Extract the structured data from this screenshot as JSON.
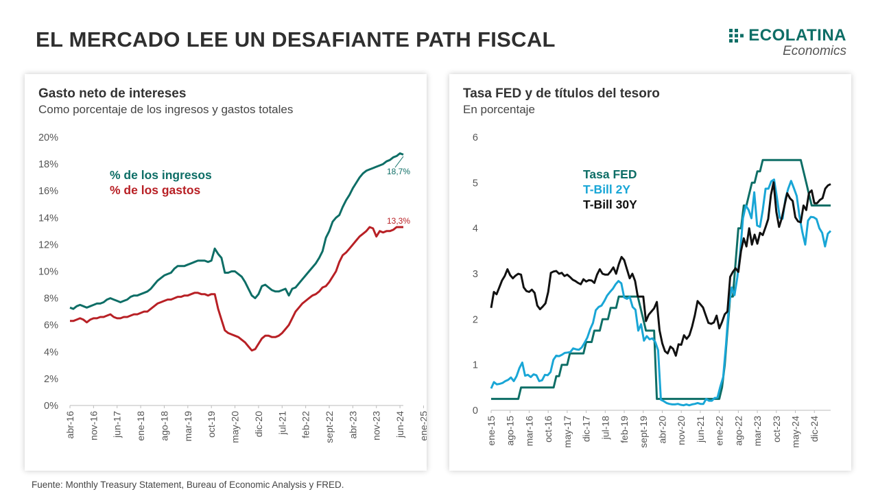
{
  "page": {
    "title": "EL MERCADO LEE UN DESAFIANTE PATH FISCAL",
    "footer": "Fuente: Monthly Treasury Statement, Bureau of Economic Analysis y FRED."
  },
  "logo": {
    "name": "ECOLATINA",
    "sub": "Economics",
    "color": "#0e6e66"
  },
  "chart_data": [
    {
      "type": "line",
      "title": "Gasto neto de intereses",
      "subtitle": "Como porcentaje de los ingresos y gastos totales",
      "y_ticks": [
        "0%",
        "2%",
        "4%",
        "6%",
        "8%",
        "10%",
        "12%",
        "14%",
        "16%",
        "18%",
        "20%"
      ],
      "ylim": [
        0,
        20
      ],
      "x_ticks": [
        "abr-16",
        "nov-16",
        "jun-17",
        "ene-18",
        "ago-18",
        "mar-19",
        "oct-19",
        "may-20",
        "dic-20",
        "jul-21",
        "feb-22",
        "sept-22",
        "abr-23",
        "nov-23",
        "jun-24",
        "ene-25"
      ],
      "series": [
        {
          "name": "% de los ingresos",
          "color": "#0e6e66",
          "end_label": "18,7%",
          "values": [
            7.3,
            7.2,
            7.4,
            7.5,
            7.4,
            7.3,
            7.4,
            7.5,
            7.6,
            7.6,
            7.7,
            7.9,
            8.0,
            7.9,
            7.8,
            7.7,
            7.8,
            7.9,
            8.1,
            8.2,
            8.2,
            8.3,
            8.4,
            8.5,
            8.7,
            9.0,
            9.3,
            9.5,
            9.7,
            9.8,
            9.9,
            10.2,
            10.4,
            10.4,
            10.4,
            10.5,
            10.6,
            10.7,
            10.8,
            10.8,
            10.8,
            10.7,
            10.8,
            11.7,
            11.3,
            11.0,
            9.9,
            9.9,
            10.0,
            10.0,
            9.8,
            9.6,
            9.2,
            8.7,
            8.2,
            8.0,
            8.3,
            8.9,
            9.0,
            8.8,
            8.6,
            8.5,
            8.5,
            8.6,
            8.7,
            8.2,
            8.7,
            8.8,
            9.1,
            9.4,
            9.7,
            10.0,
            10.3,
            10.6,
            11.0,
            11.5,
            12.5,
            13.0,
            13.7,
            14.0,
            14.2,
            14.8,
            15.3,
            15.7,
            16.2,
            16.6,
            17.0,
            17.3,
            17.5,
            17.6,
            17.7,
            17.8,
            17.9,
            18.0,
            18.2,
            18.3,
            18.5,
            18.6,
            18.8,
            18.7
          ]
        },
        {
          "name": "% de los gastos",
          "color": "#b82025",
          "end_label": "13,3%",
          "values": [
            6.3,
            6.3,
            6.4,
            6.5,
            6.4,
            6.2,
            6.4,
            6.5,
            6.5,
            6.6,
            6.6,
            6.7,
            6.8,
            6.6,
            6.5,
            6.5,
            6.6,
            6.6,
            6.7,
            6.8,
            6.8,
            6.9,
            7.0,
            7.0,
            7.2,
            7.4,
            7.6,
            7.7,
            7.8,
            7.9,
            7.9,
            8.0,
            8.1,
            8.1,
            8.2,
            8.2,
            8.3,
            8.4,
            8.4,
            8.3,
            8.3,
            8.2,
            8.3,
            8.3,
            7.2,
            6.4,
            5.6,
            5.4,
            5.3,
            5.2,
            5.1,
            4.9,
            4.7,
            4.4,
            4.1,
            4.2,
            4.6,
            5.0,
            5.2,
            5.2,
            5.1,
            5.1,
            5.2,
            5.4,
            5.7,
            6.0,
            6.5,
            7.0,
            7.3,
            7.6,
            7.8,
            8.0,
            8.2,
            8.3,
            8.5,
            8.8,
            8.9,
            9.2,
            9.6,
            10.0,
            10.7,
            11.2,
            11.4,
            11.7,
            12.0,
            12.3,
            12.6,
            12.8,
            13.0,
            13.3,
            13.2,
            12.6,
            13.0,
            12.9,
            13.0,
            13.0,
            13.1,
            13.3,
            13.3,
            13.3
          ]
        }
      ]
    },
    {
      "type": "line",
      "title": "Tasa FED y de títulos del tesoro",
      "subtitle": "En porcentaje",
      "y_ticks": [
        "0",
        "1",
        "2",
        "3",
        "4",
        "5",
        "6"
      ],
      "ylim": [
        0,
        6
      ],
      "x_ticks": [
        "ene-15",
        "ago-15",
        "mar-16",
        "oct-16",
        "may-17",
        "dic-17",
        "jul-18",
        "feb-19",
        "sept-19",
        "abr-20",
        "nov-20",
        "jun-21",
        "ene-22",
        "ago-22",
        "mar-23",
        "oct-23",
        "may-24",
        "dic-24"
      ],
      "series": [
        {
          "name": "Tasa FED",
          "color": "#0e6e66",
          "values": [
            0.25,
            0.25,
            0.25,
            0.25,
            0.25,
            0.25,
            0.25,
            0.25,
            0.25,
            0.25,
            0.25,
            0.5,
            0.5,
            0.5,
            0.5,
            0.5,
            0.5,
            0.5,
            0.5,
            0.5,
            0.5,
            0.5,
            0.5,
            0.5,
            0.75,
            0.75,
            1.0,
            1.0,
            1.0,
            1.25,
            1.25,
            1.25,
            1.25,
            1.25,
            1.25,
            1.5,
            1.5,
            1.5,
            1.75,
            1.75,
            1.75,
            2.0,
            2.0,
            2.0,
            2.25,
            2.25,
            2.25,
            2.5,
            2.5,
            2.5,
            2.5,
            2.5,
            2.5,
            2.5,
            2.5,
            2.25,
            2.0,
            1.75,
            1.75,
            1.75,
            1.75,
            0.25,
            0.25,
            0.25,
            0.25,
            0.25,
            0.25,
            0.25,
            0.25,
            0.25,
            0.25,
            0.25,
            0.25,
            0.25,
            0.25,
            0.25,
            0.25,
            0.25,
            0.25,
            0.25,
            0.25,
            0.25,
            0.25,
            0.25,
            0.25,
            0.5,
            1.0,
            1.75,
            2.5,
            2.5,
            3.25,
            4.0,
            4.0,
            4.5,
            4.5,
            4.75,
            5.0,
            5.0,
            5.25,
            5.25,
            5.5,
            5.5,
            5.5,
            5.5,
            5.5,
            5.5,
            5.5,
            5.5,
            5.5,
            5.5,
            5.5,
            5.5,
            5.5,
            5.5,
            5.5,
            5.25,
            5.0,
            4.75,
            4.5,
            4.5,
            4.5,
            4.5,
            4.5,
            4.5,
            4.5,
            4.5
          ]
        },
        {
          "name": "T-Bill 2Y",
          "color": "#19a6d6",
          "values": [
            0.48,
            0.62,
            0.57,
            0.58,
            0.6,
            0.64,
            0.67,
            0.72,
            0.64,
            0.75,
            0.93,
            1.05,
            0.76,
            0.78,
            0.73,
            0.79,
            0.77,
            0.64,
            0.66,
            0.78,
            0.77,
            0.84,
            1.11,
            1.2,
            1.19,
            1.22,
            1.26,
            1.27,
            1.28,
            1.36,
            1.34,
            1.33,
            1.38,
            1.48,
            1.6,
            1.78,
            1.92,
            2.2,
            2.27,
            2.3,
            2.4,
            2.52,
            2.6,
            2.67,
            2.77,
            2.84,
            2.79,
            2.48,
            2.45,
            2.49,
            2.27,
            2.21,
            1.75,
            1.89,
            1.53,
            1.63,
            1.56,
            1.58,
            1.5,
            1.32,
            0.23,
            0.2,
            0.16,
            0.14,
            0.13,
            0.13,
            0.14,
            0.12,
            0.11,
            0.13,
            0.11,
            0.13,
            0.14,
            0.16,
            0.14,
            0.14,
            0.25,
            0.21,
            0.21,
            0.27,
            0.28,
            0.52,
            0.73,
            1.44,
            2.28,
            2.7,
            2.53,
            2.92,
            3.45,
            4.22,
            4.5,
            4.4,
            4.22,
            4.79,
            4.06,
            4.03,
            4.4,
            4.87,
            4.87,
            5.03,
            5.07,
            4.68,
            4.23,
            4.21,
            4.64,
            4.87,
            5.04,
            4.88,
            4.71,
            4.26,
            3.91,
            3.64,
            4.17,
            4.25,
            4.24,
            4.2,
            4.0,
            3.9,
            3.6,
            3.88,
            3.94
          ]
        },
        {
          "name": "T-Bill 30Y",
          "color": "#111111",
          "values": [
            2.25,
            2.6,
            2.55,
            2.7,
            2.85,
            2.95,
            3.1,
            2.97,
            2.9,
            2.96,
            3.0,
            2.98,
            2.7,
            2.62,
            2.6,
            2.65,
            2.58,
            2.3,
            2.22,
            2.28,
            2.35,
            2.6,
            3.02,
            3.05,
            3.06,
            3.0,
            3.02,
            2.95,
            2.98,
            2.93,
            2.87,
            2.84,
            2.8,
            2.77,
            2.88,
            2.83,
            2.86,
            2.85,
            2.8,
            2.98,
            3.1,
            3.0,
            2.98,
            2.98,
            3.05,
            3.14,
            3.0,
            3.21,
            3.37,
            3.3,
            3.1,
            2.9,
            3.0,
            2.84,
            2.5,
            2.5,
            2.5,
            1.96,
            2.1,
            2.17,
            2.24,
            2.38,
            1.76,
            1.47,
            1.3,
            1.25,
            1.4,
            1.35,
            1.2,
            1.45,
            1.44,
            1.65,
            1.57,
            1.65,
            1.84,
            2.09,
            2.4,
            2.33,
            2.26,
            2.09,
            1.92,
            1.9,
            1.93,
            2.08,
            1.8,
            1.94,
            2.11,
            2.17,
            2.93,
            3.04,
            3.12,
            3.04,
            3.5,
            3.78,
            3.6,
            4.0,
            3.64,
            3.86,
            3.66,
            3.9,
            3.85,
            4.02,
            4.2,
            4.73,
            5.01,
            4.36,
            4.03,
            4.22,
            4.5,
            4.77,
            4.66,
            4.6,
            4.24,
            4.15,
            4.13,
            4.5,
            4.4,
            4.77,
            4.83,
            4.55,
            4.55,
            4.62,
            4.66,
            4.87,
            4.94,
            4.97
          ]
        }
      ]
    }
  ]
}
